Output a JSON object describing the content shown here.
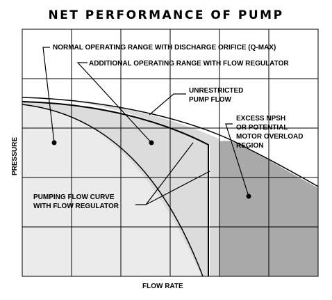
{
  "title": "NET PERFORMANCE OF PUMP",
  "x_axis_label": "FLOW RATE",
  "y_axis_label": "PRESSURE",
  "labels": {
    "normal_range": "NORMAL OPERATING RANGE WITH DISCHARGE ORIFICE (Q-MAX)",
    "additional_range": "ADDITIONAL OPERATING RANGE WITH FLOW REGULATOR",
    "unrestricted_line1": "UNRESTRICTED",
    "unrestricted_line2": "PUMP FLOW",
    "excess_line1": "EXCESS NPSH",
    "excess_line2": "OR POTENTIAL",
    "excess_line3": "MOTOR OVERLOAD",
    "excess_line4": "REGION",
    "pumping_line1": "PUMPING FLOW CURVE",
    "pumping_line2": "WITH FLOW REGULATOR"
  },
  "colors": {
    "normal_region": "#ebebeb",
    "additional_region": "#d9d9d9",
    "excess_region": "#a9a9a9",
    "grid": "#000000"
  }
}
